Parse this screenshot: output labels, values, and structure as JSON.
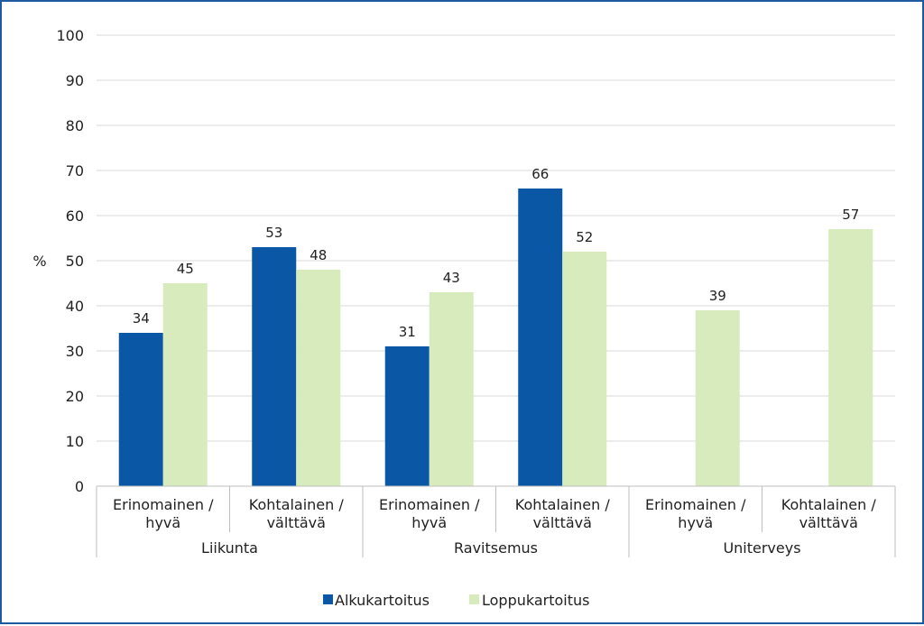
{
  "chart_data": {
    "type": "bar",
    "ylabel": "%",
    "ylim": [
      0,
      100
    ],
    "yticks": [
      0,
      10,
      20,
      30,
      40,
      50,
      60,
      70,
      80,
      90,
      100
    ],
    "grid": true,
    "legend_position": "bottom",
    "groups": [
      {
        "name": "Liikunta",
        "categories": [
          [
            "Erinomainen /",
            "hyvä"
          ],
          [
            "Kohtalainen /",
            "välttävä"
          ]
        ]
      },
      {
        "name": "Ravitsemus",
        "categories": [
          [
            "Erinomainen /",
            "hyvä"
          ],
          [
            "Kohtalainen /",
            "välttävä"
          ]
        ]
      },
      {
        "name": "Uniterveys",
        "categories": [
          [
            "Erinomainen /",
            "hyvä"
          ],
          [
            "Kohtalainen /",
            "välttävä"
          ]
        ]
      }
    ],
    "series": [
      {
        "name": "Alkukartoitus",
        "color": "#0a57a6",
        "values": [
          34,
          53,
          31,
          66,
          null,
          null
        ]
      },
      {
        "name": "Loppukartoitus",
        "color": "#d7ebbd",
        "values": [
          45,
          48,
          43,
          52,
          39,
          57
        ]
      }
    ]
  }
}
